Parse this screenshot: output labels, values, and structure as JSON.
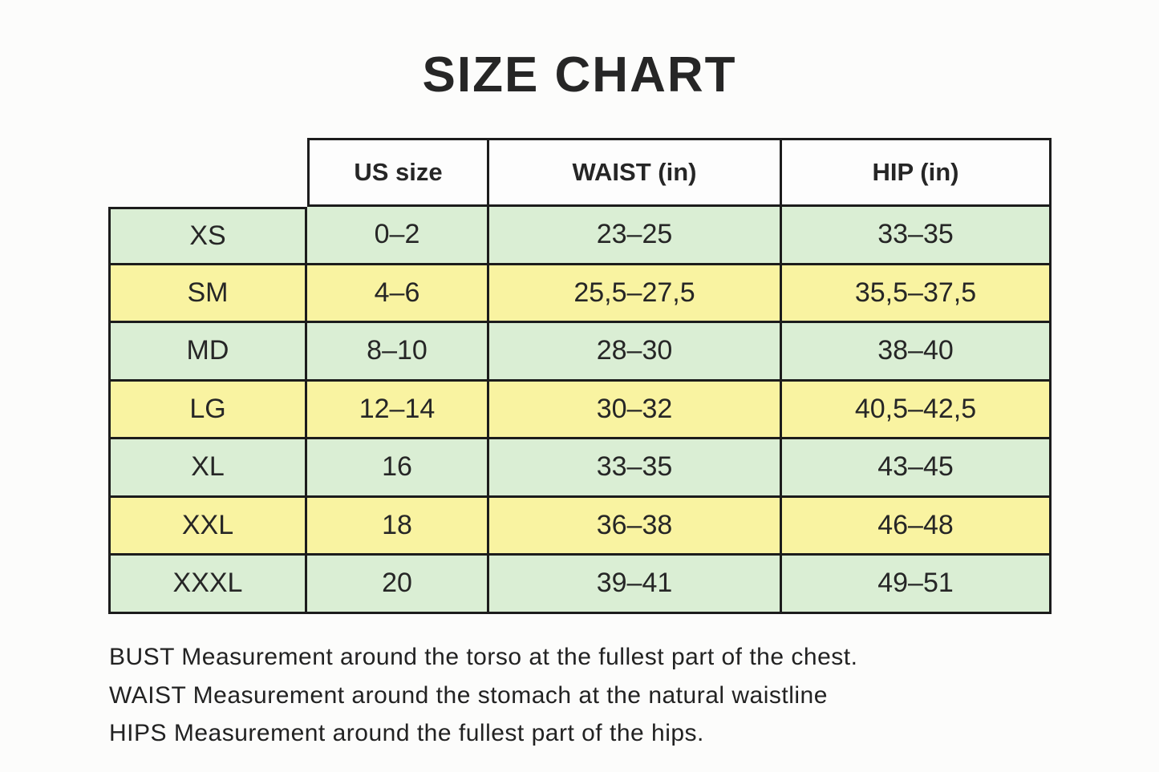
{
  "page": {
    "title": "SIZE CHART",
    "background": "#fcfcfb"
  },
  "colors": {
    "row_green": "#daeed4",
    "row_yellow": "#f9f3a1",
    "header_bg": "#fdfdfd",
    "border": "#1c1c1c",
    "text": "#262626"
  },
  "chart_data": {
    "type": "table",
    "title": "SIZE CHART",
    "column_headers": [
      "US size",
      "WAIST (in)",
      "HIP (in)"
    ],
    "rows": [
      {
        "size": "XS",
        "us_size": "0–2",
        "waist_in": "23–25",
        "hip_in": "33–35",
        "row_color": "green"
      },
      {
        "size": "SM",
        "us_size": "4–6",
        "waist_in": "25,5–27,5",
        "hip_in": "35,5–37,5",
        "row_color": "yellow"
      },
      {
        "size": "MD",
        "us_size": "8–10",
        "waist_in": "28–30",
        "hip_in": "38–40",
        "row_color": "green"
      },
      {
        "size": "LG",
        "us_size": "12–14",
        "waist_in": "30–32",
        "hip_in": "40,5–42,5",
        "row_color": "yellow"
      },
      {
        "size": "XL",
        "us_size": "16",
        "waist_in": "33–35",
        "hip_in": "43–45",
        "row_color": "green"
      },
      {
        "size": "XXL",
        "us_size": "18",
        "waist_in": "36–38",
        "hip_in": "46–48",
        "row_color": "yellow"
      },
      {
        "size": "XXXL",
        "us_size": "20",
        "waist_in": "39–41",
        "hip_in": "49–51",
        "row_color": "green"
      }
    ],
    "footnotes": [
      "BUST Measurement around the torso at the fullest part of the chest.",
      "WAIST Measurement around the stomach at the natural waistline",
      "HIPS Measurement around the fullest part of the hips."
    ]
  }
}
